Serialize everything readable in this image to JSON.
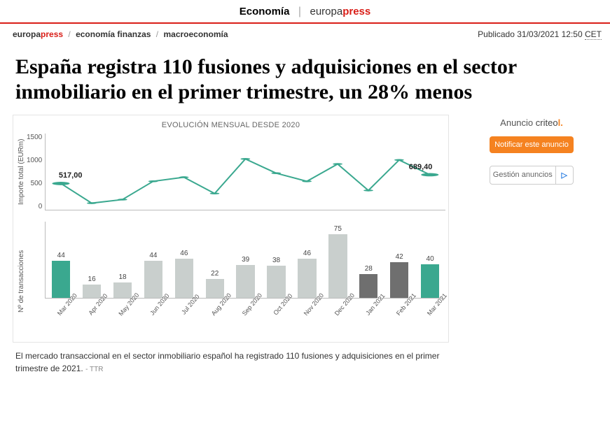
{
  "header": {
    "section": "Economía",
    "brand_a": "europa",
    "brand_b": "press"
  },
  "breadcrumb": {
    "brand_a": "europa",
    "brand_b": "press",
    "level1": "economía finanzas",
    "level2": "macroeconomía"
  },
  "published": {
    "prefix": "Publicado",
    "date": "31/03/2021 12:50",
    "tz": "CET"
  },
  "headline": "España registra 110 fusiones y adquisiciones en el sector inmobiliario en el primer trimestre, un 28% menos",
  "chart": {
    "title": "EVOLUCIÓN MENSUAL DESDE 2020",
    "months": [
      "Mar 2020",
      "Apr 2020",
      "May 2020",
      "Jun 2020",
      "Jul 2020",
      "Aug 2020",
      "Sep 2020",
      "Oct 2020",
      "Nov 2020",
      "Dec 2020",
      "Jan 2021",
      "Feb 2021",
      "Mar 2021"
    ],
    "line": {
      "ylabel": "Importe total (EURm)",
      "ylim": [
        0,
        1500
      ],
      "ytick_step": 500,
      "yticks": [
        "1500",
        "1000",
        "500",
        "0"
      ],
      "values": [
        517,
        130,
        200,
        560,
        640,
        320,
        1000,
        720,
        560,
        900,
        380,
        980,
        689.4
      ],
      "annotations": [
        {
          "index": 0,
          "text": "517,00"
        },
        {
          "index": 12,
          "text": "689,40"
        }
      ],
      "stroke": "#3aa88f",
      "stroke_width": 2,
      "marker_r": 4,
      "highlight_marker_r": 6
    },
    "bars": {
      "ylabel": "Nº de transacciones",
      "max_scaled_to": 90,
      "values": [
        44,
        16,
        18,
        44,
        46,
        22,
        39,
        38,
        46,
        75,
        28,
        42,
        40
      ],
      "colors": [
        "#3aa88f",
        "#c9cfcd",
        "#c9cfcd",
        "#c9cfcd",
        "#c9cfcd",
        "#c9cfcd",
        "#c9cfcd",
        "#c9cfcd",
        "#c9cfcd",
        "#c9cfcd",
        "#6f6f6f",
        "#6f6f6f",
        "#3aa88f"
      ]
    },
    "background": "#ffffff",
    "border": "#e4e4e4"
  },
  "caption": {
    "text": "El mercado transaccional en el sector inmobiliario español ha registrado 110 fusiones y adquisiciones en el primer trimestre de 2021.",
    "source": "- TTR"
  },
  "sidebar": {
    "ad_label": "Anuncio",
    "ad_brand_a": "criteo",
    "ad_brand_b": "l.",
    "notify_btn": "Notificar este anuncio",
    "manage_btn": "Gestión anuncios"
  }
}
